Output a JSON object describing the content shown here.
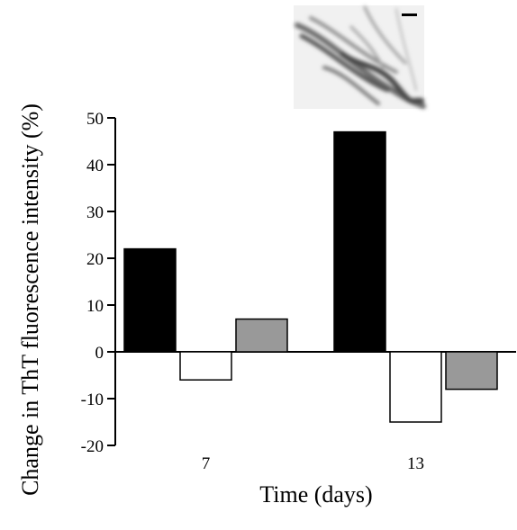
{
  "chart_data": {
    "type": "bar",
    "title": "",
    "xlabel": "Time (days)",
    "ylabel": "Change in ThT fluorescence intensity (%)",
    "ylim": [
      -20,
      50
    ],
    "yticks": [
      50,
      40,
      30,
      20,
      10,
      0,
      -10,
      -20
    ],
    "categories": [
      "7",
      "13"
    ],
    "grid": false,
    "legend": "none",
    "series": [
      {
        "color": "#000000",
        "values": [
          22,
          47
        ]
      },
      {
        "color": "#ffffff",
        "values": [
          -6,
          -15
        ]
      },
      {
        "color": "#999999",
        "values": [
          7,
          -8
        ]
      }
    ],
    "inset": {
      "content": "micrograph of fibrillar aggregates with scale bar"
    }
  }
}
